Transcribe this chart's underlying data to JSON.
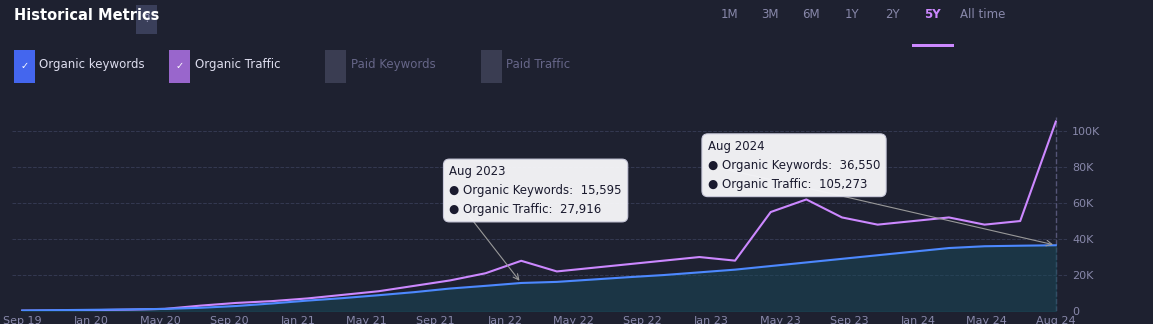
{
  "title": "Historical Metrics",
  "background_color": "#1e2130",
  "plot_bg_color": "#1e2130",
  "grid_color": "#3a3f5a",
  "text_color": "#ffffff",
  "legend_items": [
    {
      "label": "Organic keywords",
      "color": "#4d79ff",
      "checked": true,
      "check_bg": "#4466ee"
    },
    {
      "label": "Organic Traffic",
      "color": "#cc88ff",
      "checked": true,
      "check_bg": "#9966cc"
    },
    {
      "label": "Paid Keywords",
      "color": "#7a5a3a",
      "checked": false,
      "check_bg": "#555555"
    },
    {
      "label": "Paid Traffic",
      "color": "#aa8833",
      "checked": false,
      "check_bg": "#555555"
    }
  ],
  "time_buttons": [
    "1M",
    "3M",
    "6M",
    "1Y",
    "2Y",
    "5Y",
    "All time"
  ],
  "active_button": "5Y",
  "x_labels": [
    "Sep 19",
    "Jan 20",
    "May 20",
    "Sep 20",
    "Jan 21",
    "May 21",
    "Sep 21",
    "Jan 22",
    "May 22",
    "Sep 22",
    "Jan 23",
    "May 23",
    "Sep 23",
    "Jan 24",
    "May 24",
    "Aug 24"
  ],
  "y_ticks": [
    0,
    20000,
    40000,
    60000,
    80000,
    100000
  ],
  "y_tick_labels": [
    "0",
    "20K",
    "40K",
    "60K",
    "80K",
    "100K"
  ],
  "ylim": [
    0,
    108000
  ],
  "organic_keywords": [
    300,
    500,
    700,
    900,
    1200,
    1800,
    2800,
    4200,
    5800,
    7200,
    8800,
    10500,
    12500,
    14000,
    15595,
    16200,
    17500,
    18800,
    20000,
    21500,
    23000,
    25000,
    27000,
    29000,
    31000,
    33000,
    35000,
    36000,
    36300,
    36550
  ],
  "organic_traffic": [
    200,
    300,
    500,
    800,
    1200,
    3000,
    4500,
    5500,
    7000,
    9000,
    11000,
    14000,
    17000,
    21000,
    27916,
    22000,
    24000,
    26000,
    28000,
    30000,
    28000,
    55000,
    62000,
    52000,
    48000,
    50000,
    52000,
    48000,
    50000,
    105273
  ],
  "n_points": 30,
  "organic_keywords_color": "#4d88ff",
  "organic_traffic_color": "#cc88ff",
  "fill_kw_color": "#1a4a5a",
  "fill_kw_alpha": 0.5,
  "tooltip1": {
    "title": "Aug 2023",
    "kw_value": "15,595",
    "tr_value": "27,916",
    "data_idx": 14,
    "bg": "#f5f5f8",
    "text_color": "#1a1a2e",
    "title_color": "#1a1a2e"
  },
  "tooltip2": {
    "title": "Aug 2024",
    "kw_value": "36,550",
    "tr_value": "105,273",
    "data_idx": 29,
    "bg": "#f5f5f8",
    "text_color": "#1a1a2e",
    "title_color": "#1a1a2e"
  }
}
